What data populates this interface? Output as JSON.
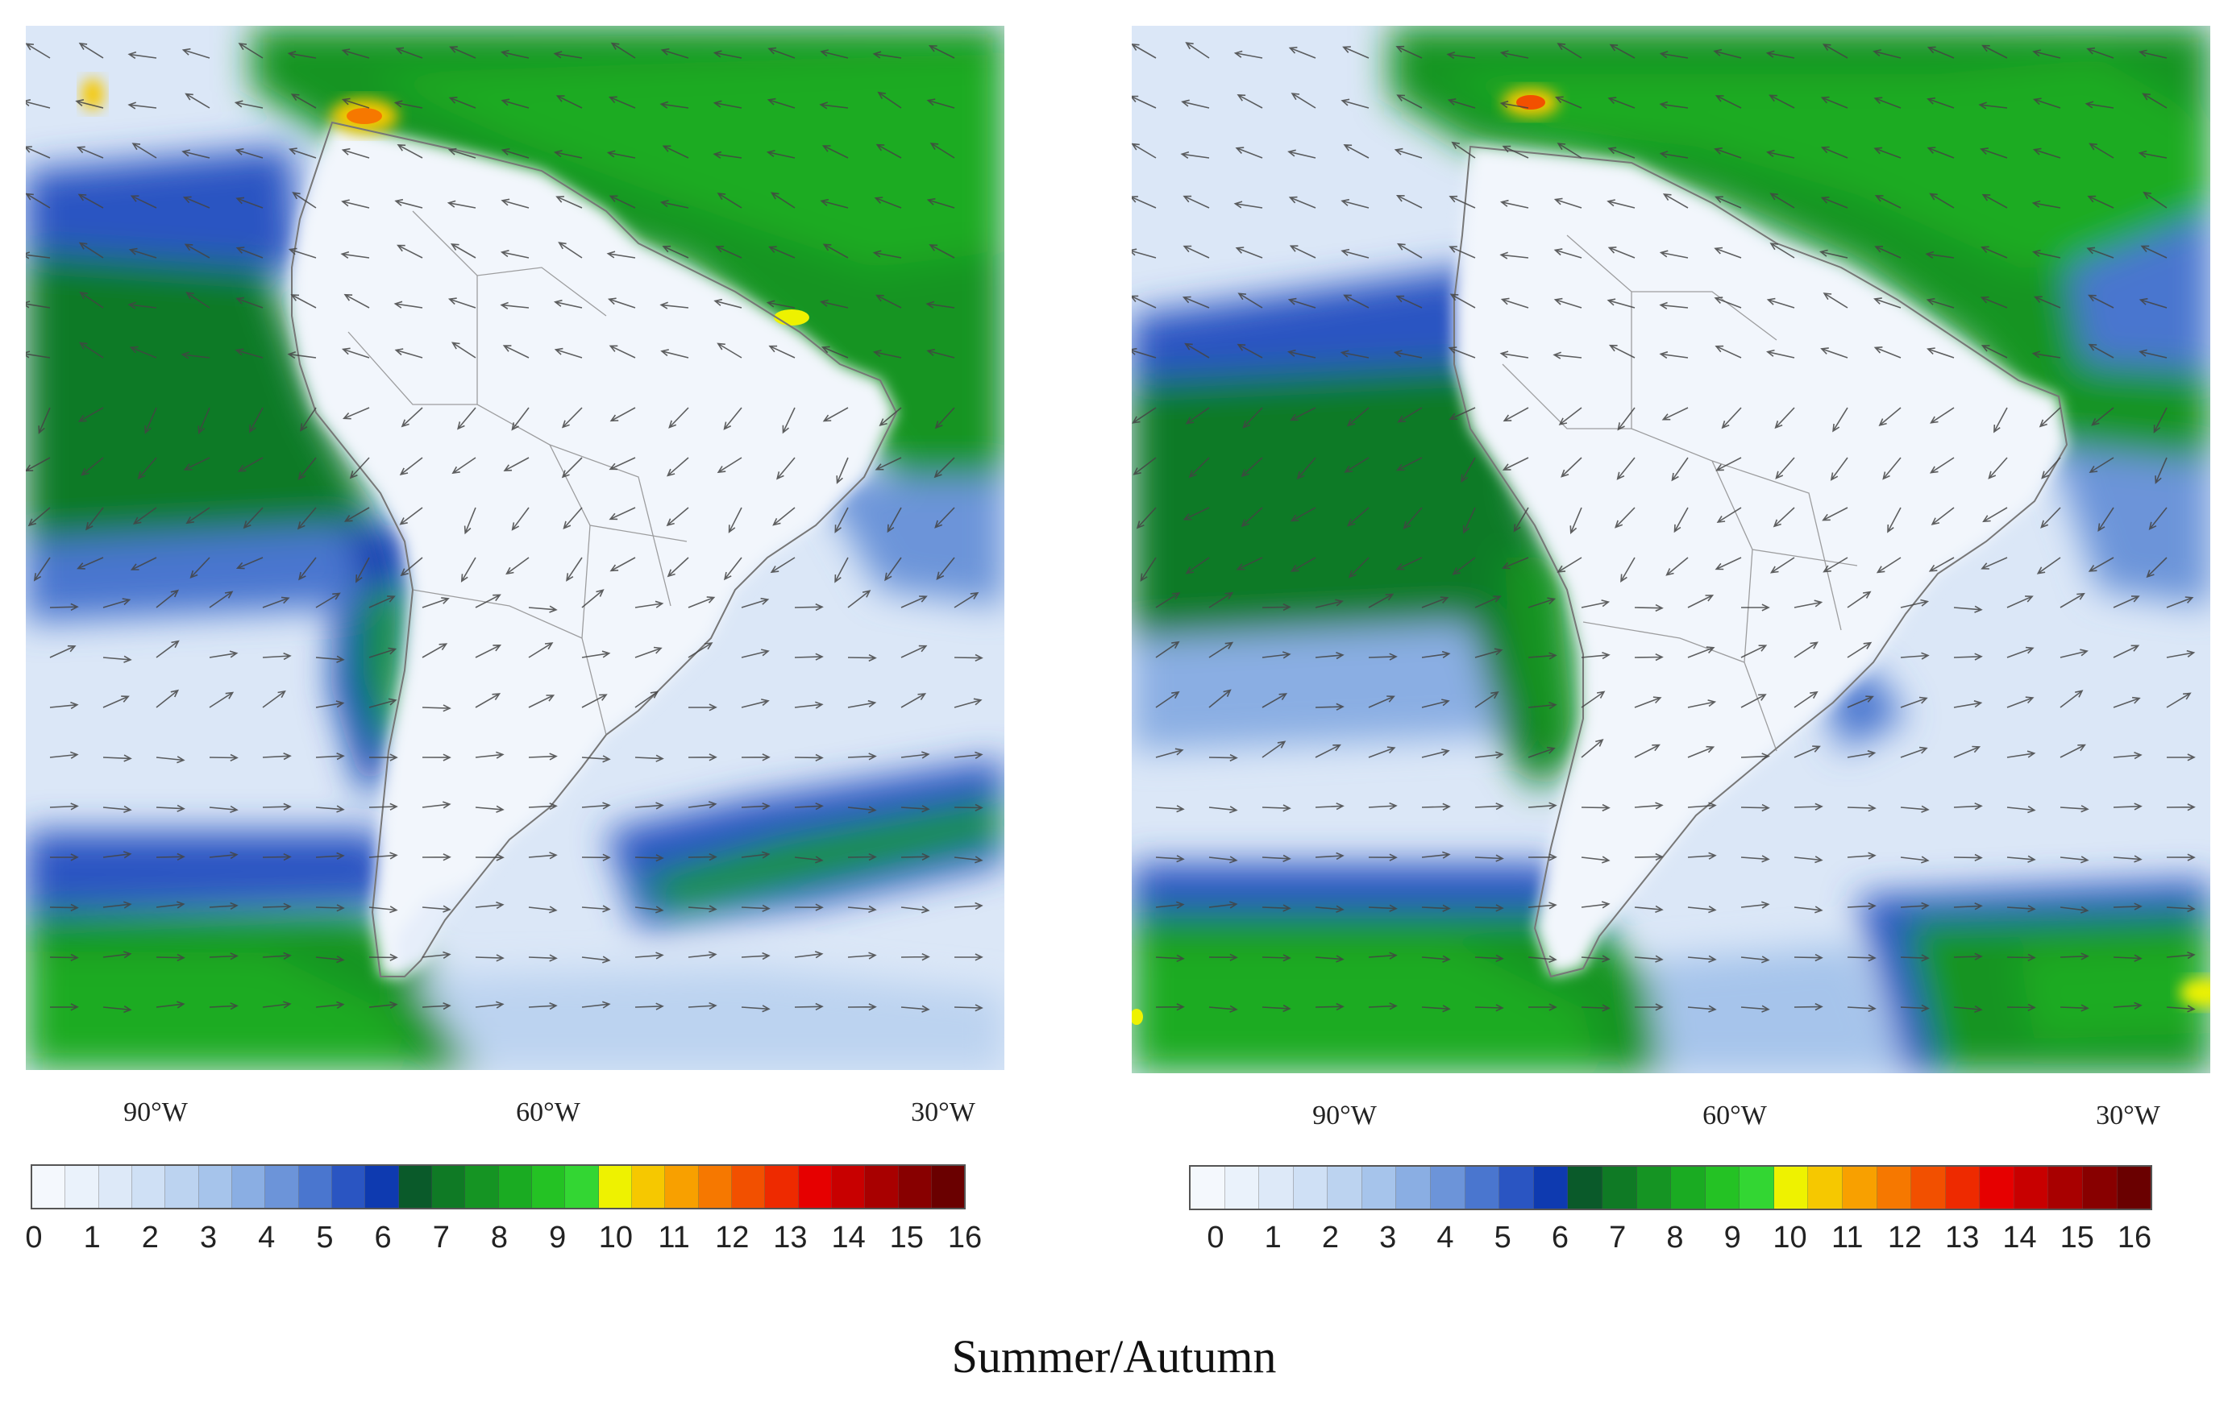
{
  "panels": [
    {
      "lon_labels": [
        "90°W",
        "60°W",
        "30°W"
      ],
      "colorbar_ticks": [
        "0",
        "1",
        "2",
        "3",
        "4",
        "5",
        "6",
        "7",
        "8",
        "9",
        "10",
        "11",
        "12",
        "13",
        "14",
        "15",
        "16"
      ]
    },
    {
      "lon_labels": [
        "90°W",
        "60°W",
        "30°W"
      ],
      "colorbar_ticks": [
        "0",
        "1",
        "2",
        "3",
        "4",
        "5",
        "6",
        "7",
        "8",
        "9",
        "10",
        "11",
        "12",
        "13",
        "14",
        "15",
        "16"
      ]
    }
  ],
  "colorbar_colors": [
    "#f4f8fd",
    "#eaf2fb",
    "#dde9f8",
    "#cfe0f5",
    "#bcd3f0",
    "#a6c4eb",
    "#8aaee3",
    "#6c94d9",
    "#4a76cf",
    "#2a55c2",
    "#0e3ab0",
    "#0a5a2a",
    "#0f7a25",
    "#159423",
    "#1aab22",
    "#24c224",
    "#33d633",
    "#eef200",
    "#f6c800",
    "#f8a000",
    "#f67800",
    "#f25000",
    "#ee2a00",
    "#e60000",
    "#c80000",
    "#a80000",
    "#880000",
    "#6a0000"
  ],
  "caption": "Summer/Autumn"
}
